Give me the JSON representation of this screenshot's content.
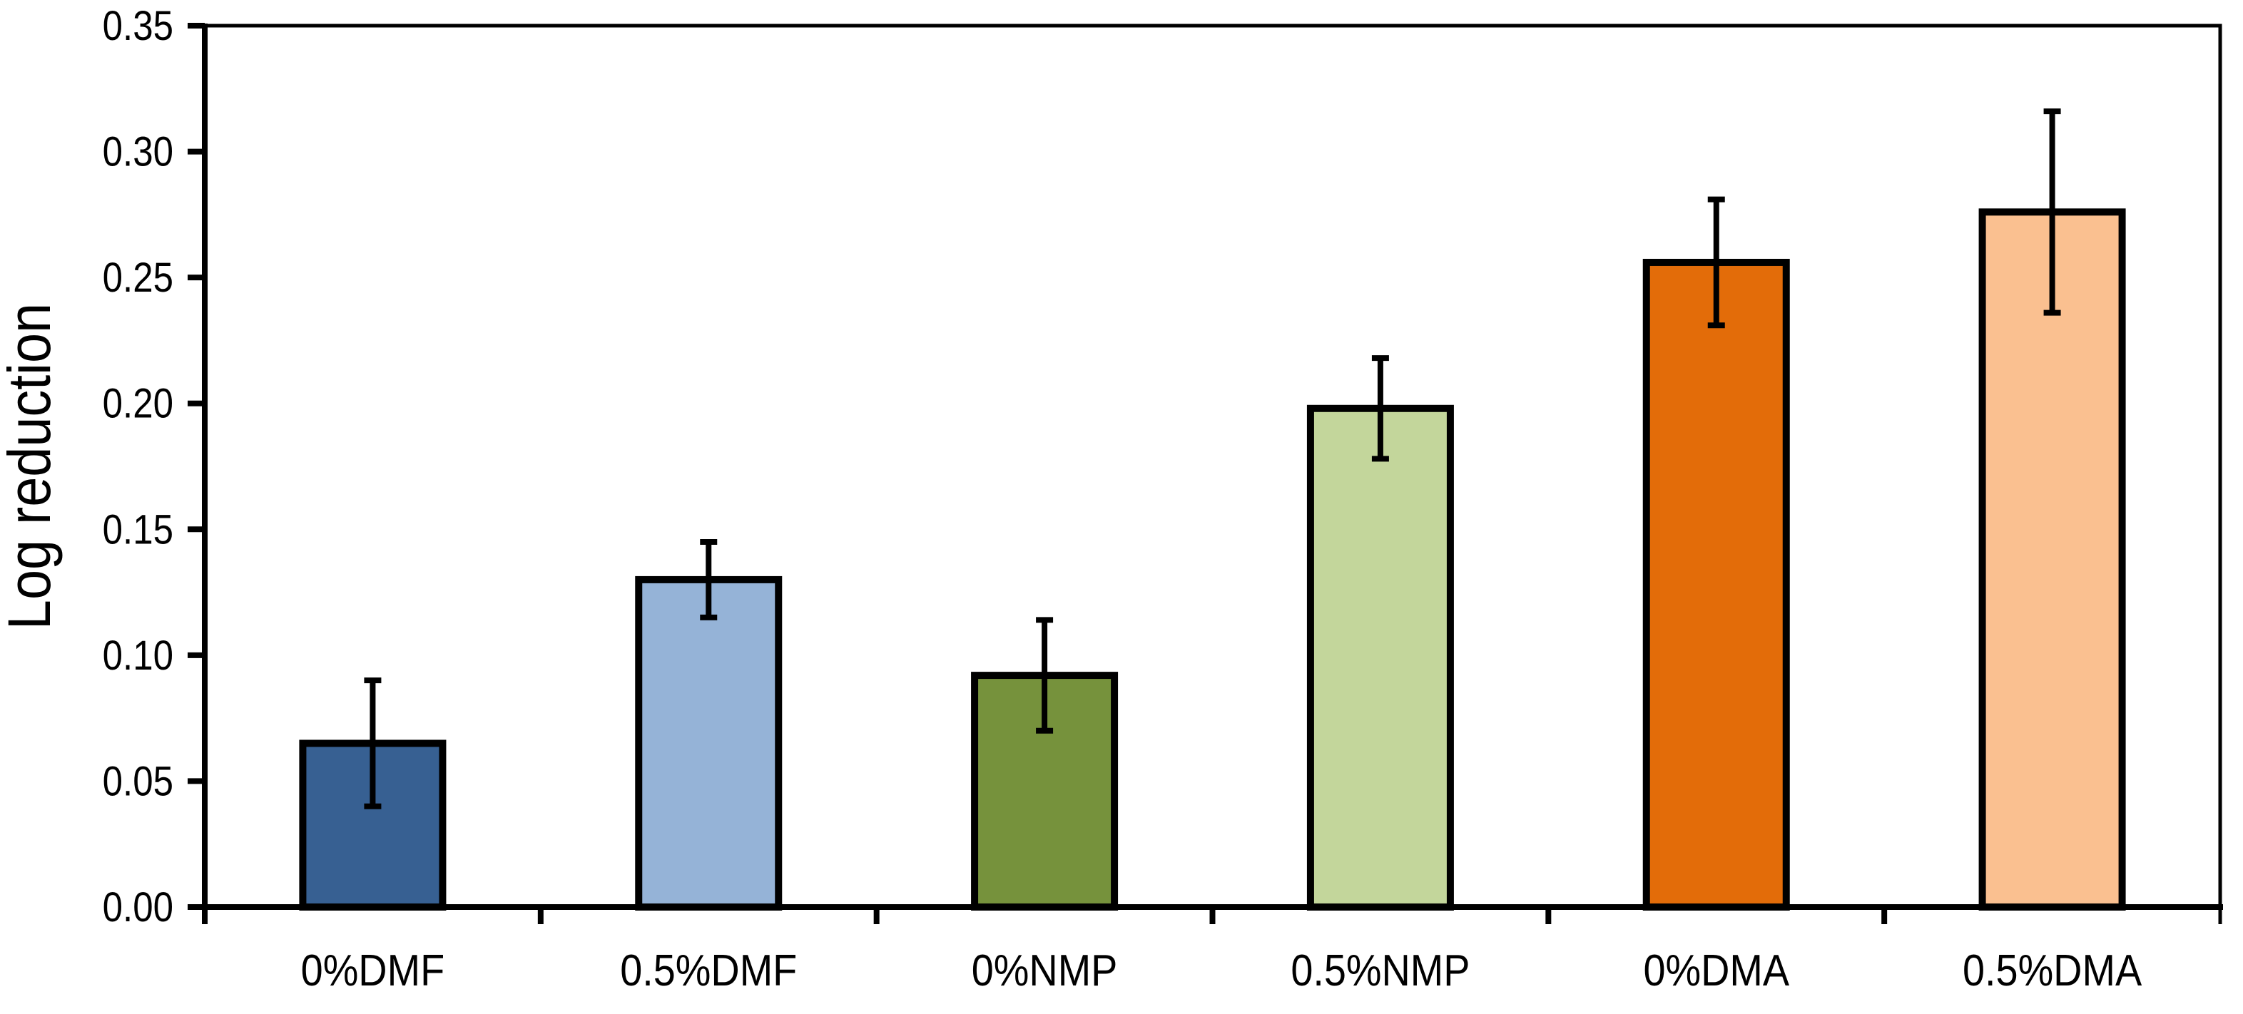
{
  "page": {
    "background_color": "#FFFFFF"
  },
  "chart_data": {
    "type": "bar",
    "title": "",
    "xlabel": "",
    "ylabel": "Log reduction",
    "categories": [
      "0%DMF",
      "0.5%DMF",
      "0%NMP",
      "0.5%NMP",
      "0%DMA",
      "0.5%DMA"
    ],
    "values": [
      0.065,
      0.13,
      0.092,
      0.198,
      0.256,
      0.276
    ],
    "error_bars": [
      0.025,
      0.015,
      0.022,
      0.02,
      0.025,
      0.04
    ],
    "bar_fill_colors": [
      "#376092",
      "#95B3D7",
      "#76923C",
      "#C3D69B",
      "#E36C09",
      "#FAC090"
    ],
    "bar_outline_color": "#000000",
    "error_bar_color": "#000000",
    "axis_color": "#000000",
    "text_color": "#000000",
    "ylim": [
      0,
      0.35
    ],
    "ytick_step": 0.05,
    "ytick_labels": [
      "0.00",
      "0.05",
      "0.10",
      "0.15",
      "0.20",
      "0.25",
      "0.30",
      "0.35"
    ],
    "grid": "off",
    "legend": "none",
    "plot_border": "full frame (left/bottom axes thick, top/right thin)",
    "error_bar_style": "symmetric, black stems with end caps"
  }
}
